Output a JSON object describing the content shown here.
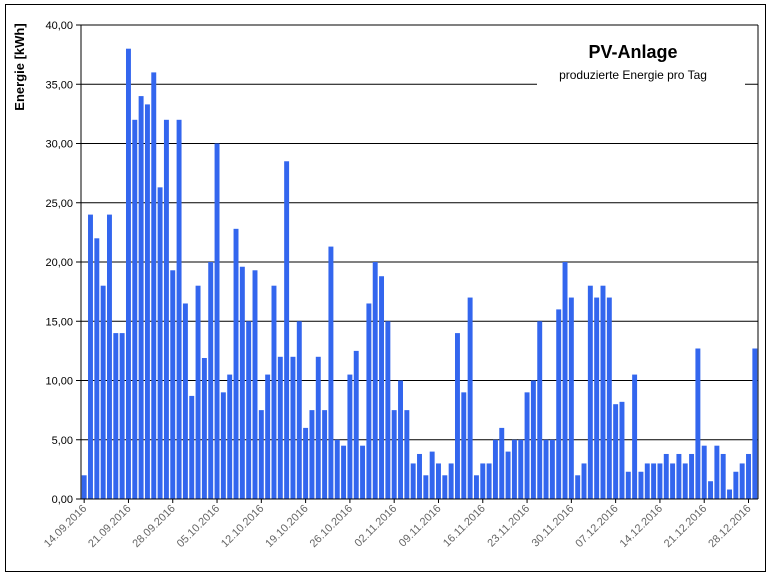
{
  "chart_data": {
    "type": "bar",
    "title": "PV-Anlage",
    "subtitle": "produzierte Energie pro Tag",
    "ylabel": "Energie [kWh]",
    "xlabel": "",
    "ylim": [
      0,
      40
    ],
    "y_ticks": [
      "0,00",
      "5,00",
      "10,00",
      "15,00",
      "20,00",
      "25,00",
      "30,00",
      "35,00",
      "40,00"
    ],
    "x_tick_labels": [
      "14.09.2016",
      "21.09.2016",
      "28.09.2016",
      "05.10.2016",
      "12.10.2016",
      "19.10.2016",
      "26.10.2016",
      "02.11.2016",
      "09.11.2016",
      "16.11.2016",
      "23.11.2016",
      "30.11.2016",
      "07.12.2016",
      "14.12.2016",
      "21.12.2016",
      "28.12.2016"
    ],
    "grid": "horizontal",
    "bar_color": "#3366ee",
    "start_date": "14.09.2016",
    "values": [
      2.0,
      24.0,
      22.0,
      18.0,
      24.0,
      14.0,
      14.0,
      38.0,
      32.0,
      34.0,
      33.3,
      36.0,
      26.3,
      32.0,
      19.3,
      32.0,
      16.5,
      8.7,
      18.0,
      11.9,
      20.0,
      30.0,
      9.0,
      10.5,
      22.8,
      19.6,
      15.0,
      19.3,
      7.5,
      10.5,
      18.0,
      12.0,
      28.5,
      12.0,
      15.0,
      6.0,
      7.5,
      12.0,
      7.5,
      21.3,
      5.0,
      4.5,
      10.5,
      12.5,
      4.5,
      16.5,
      20.0,
      18.8,
      15.0,
      7.5,
      10.0,
      7.5,
      3.0,
      3.8,
      2.0,
      4.0,
      3.0,
      2.0,
      3.0,
      14.0,
      9.0,
      17.0,
      2.0,
      3.0,
      3.0,
      5.0,
      6.0,
      4.0,
      5.0,
      5.0,
      9.0,
      10.0,
      15.0,
      5.0,
      5.0,
      16.0,
      20.0,
      17.0,
      2.0,
      3.0,
      18.0,
      17.0,
      18.0,
      17.0,
      8.0,
      8.2,
      2.3,
      10.5,
      2.3,
      3.0,
      3.0,
      3.0,
      3.8,
      3.0,
      3.8,
      3.0,
      3.8,
      12.7,
      4.5,
      1.5,
      4.5,
      3.8,
      0.8,
      2.3,
      3.0,
      3.8,
      12.7
    ]
  }
}
